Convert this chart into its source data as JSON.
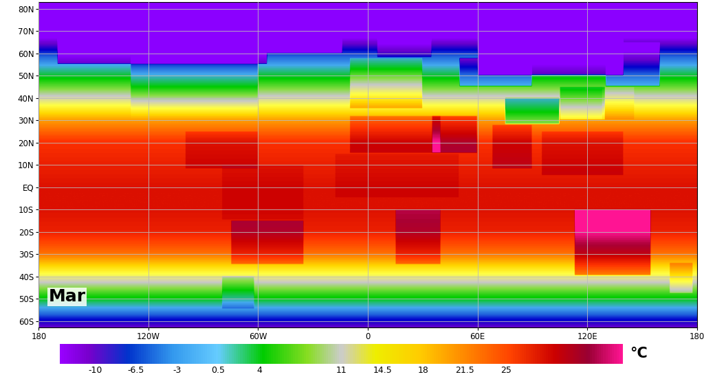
{
  "title": "Mar",
  "colorbar_label": "°C",
  "colorbar_ticks": [
    -10,
    -6.5,
    -3,
    0.5,
    4,
    11,
    14.5,
    18,
    21.5,
    25
  ],
  "colorbar_tick_labels": [
    "-10",
    "-6.5",
    "-3",
    "0.5",
    "4",
    "11",
    "14.5",
    "18",
    "21.5",
    "25"
  ],
  "temp_vmin": -15,
  "temp_vmax": 33,
  "background_color": "#ffffff",
  "ocean_color": "#ffffff",
  "grid_color": "#bbbbbb",
  "lon_ticks": [
    -180,
    -120,
    -60,
    0,
    60,
    120,
    180
  ],
  "lon_labels": [
    "180",
    "120W",
    "60W",
    "0",
    "60E",
    "120E",
    "180"
  ],
  "lat_ticks": [
    -60,
    -50,
    -40,
    -30,
    -20,
    -10,
    0,
    10,
    20,
    30,
    40,
    50,
    60,
    70,
    80
  ],
  "lat_labels": [
    "60S",
    "50S",
    "40S",
    "30S",
    "20S",
    "10S",
    "EQ",
    "10N",
    "20N",
    "30N",
    "40N",
    "50N",
    "60N",
    "70N",
    "80N"
  ],
  "map_extent": [
    -180,
    180,
    -63,
    83
  ],
  "colormap_colors": [
    [
      0.0,
      "#8B00FF"
    ],
    [
      0.08,
      "#6600CC"
    ],
    [
      0.15,
      "#0000CC"
    ],
    [
      0.22,
      "#2266DD"
    ],
    [
      0.3,
      "#44AAEE"
    ],
    [
      0.42,
      "#00CC00"
    ],
    [
      0.5,
      "#88DD44"
    ],
    [
      0.55,
      "#C8C8C8"
    ],
    [
      0.62,
      "#FFFF44"
    ],
    [
      0.68,
      "#FFD700"
    ],
    [
      0.75,
      "#FF8800"
    ],
    [
      0.83,
      "#FF3300"
    ],
    [
      0.9,
      "#CC0000"
    ],
    [
      0.95,
      "#AA0033"
    ],
    [
      1.0,
      "#FF1493"
    ]
  ]
}
